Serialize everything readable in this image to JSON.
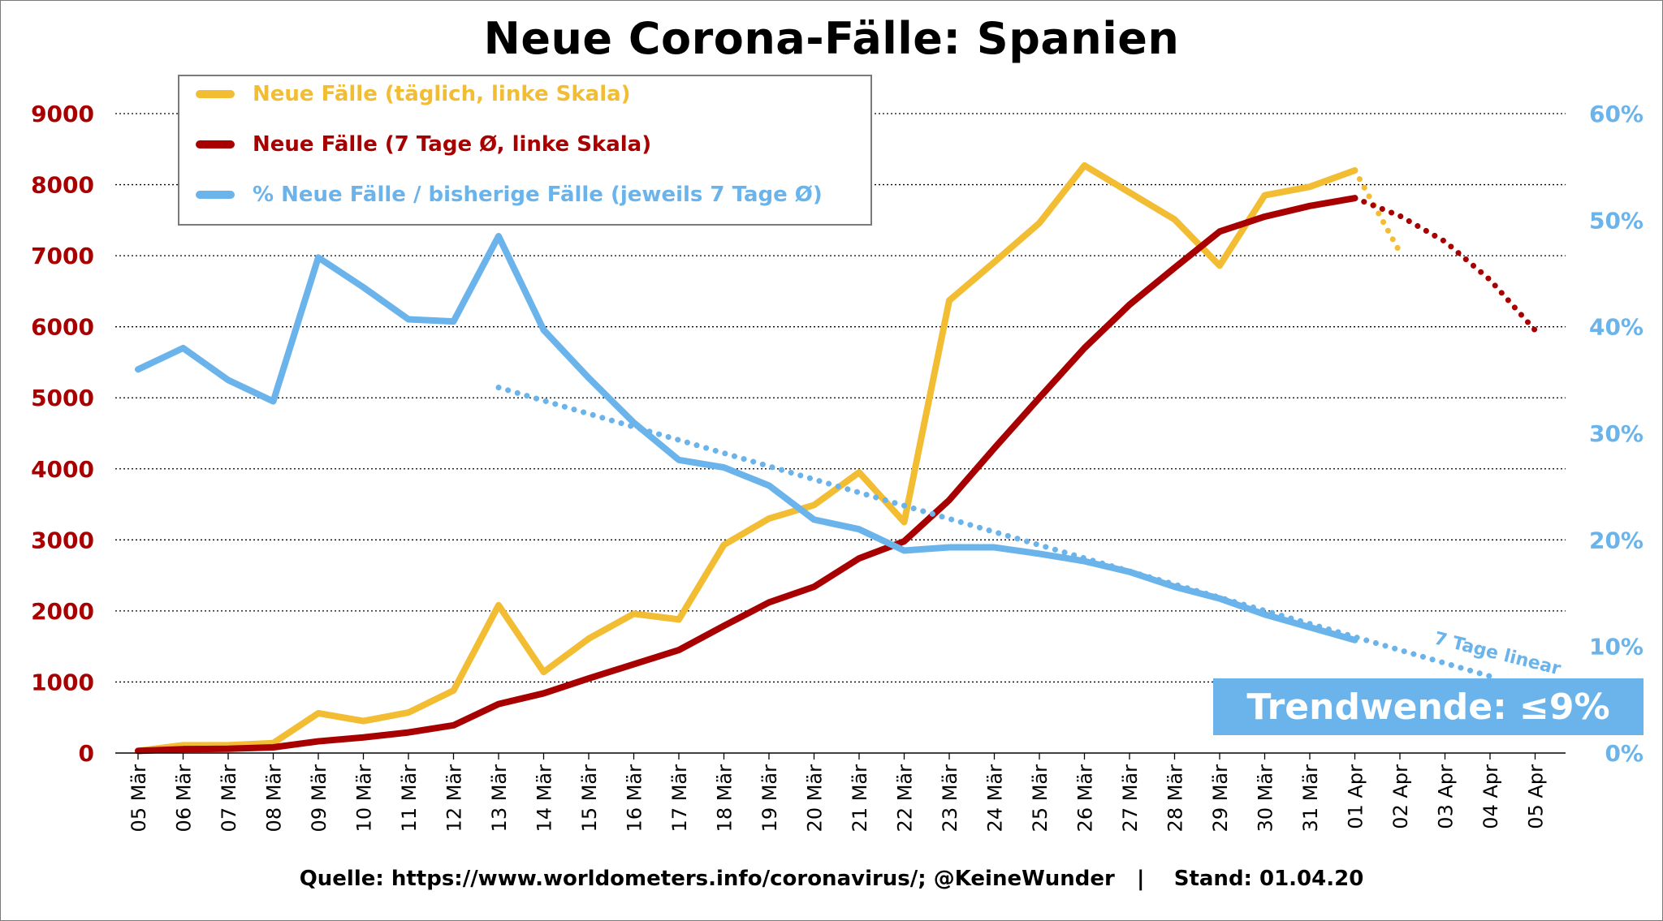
{
  "title": "Neue Corona-Fälle: Spanien",
  "footer": "Quelle: https://www.worldometers.info/coronavirus/; @KeineWunder   |    Stand: 01.04.20",
  "trend_box": "Trendwende: ≤9%",
  "trend_label": "7 Tage linear",
  "colors": {
    "daily": "#f2bd33",
    "avg": "#a80000",
    "pct": "#6ab4eb",
    "left_axis": "#a80000",
    "right_axis": "#6ab4eb"
  },
  "legend": [
    {
      "label": "Neue Fälle (täglich, linke Skala)",
      "color": "#f2bd33"
    },
    {
      "label": "Neue Fälle (7 Tage Ø, linke Skala)",
      "color": "#a80000"
    },
    {
      "label": "% Neue Fälle / bisherige Fälle (jeweils 7 Tage Ø)",
      "color": "#6ab4eb"
    }
  ],
  "chart_data": {
    "type": "line",
    "categories": [
      "05 Mär",
      "06 Mär",
      "07 Mär",
      "08 Mär",
      "09 Mär",
      "10 Mär",
      "11 Mär",
      "12 Mär",
      "13 Mär",
      "14 Mär",
      "15 Mär",
      "16 Mär",
      "17 Mär",
      "18 Mär",
      "19 Mär",
      "20 Mär",
      "21 Mär",
      "22 Mär",
      "23 Mär",
      "24 Mär",
      "25 Mär",
      "26 Mär",
      "27 Mär",
      "28 Mär",
      "29 Mär",
      "30 Mär",
      "31 Mär",
      "01 Apr",
      "02 Apr",
      "03 Apr",
      "04 Apr",
      "05 Apr"
    ],
    "y_left": {
      "min": 0,
      "max": 9000,
      "ticks": [
        0,
        1000,
        2000,
        3000,
        4000,
        5000,
        6000,
        7000,
        8000,
        9000
      ],
      "tick_labels": [
        "0",
        "1000",
        "2000",
        "3000",
        "4000",
        "5000",
        "6000",
        "7000",
        "8000",
        "9000"
      ]
    },
    "y_right": {
      "min": 0,
      "max": 60,
      "ticks": [
        0,
        10,
        20,
        30,
        40,
        50,
        60
      ],
      "tick_labels": [
        "0%",
        "10%",
        "20%",
        "30%",
        "40%",
        "50%",
        "60%"
      ]
    },
    "grid": "horizontal dotted",
    "series": [
      {
        "name": "Neue Fälle (täglich, linke Skala)",
        "axis": "left",
        "style": "solid",
        "values": [
          30,
          110,
          110,
          140,
          560,
          450,
          570,
          880,
          2080,
          1140,
          1610,
          1960,
          1880,
          2930,
          3300,
          3490,
          3950,
          3250,
          6370,
          6910,
          7460,
          8270,
          7890,
          7510,
          6860,
          7850,
          7970,
          8200,
          null,
          null,
          null,
          null
        ]
      },
      {
        "name": "Neue Fälle (täglich, linke Skala)",
        "axis": "left",
        "style": "dotted",
        "values": [
          null,
          null,
          null,
          null,
          null,
          null,
          null,
          null,
          null,
          null,
          null,
          null,
          null,
          null,
          null,
          null,
          null,
          null,
          null,
          null,
          null,
          null,
          null,
          null,
          null,
          null,
          null,
          8200,
          7050,
          null,
          null,
          null
        ]
      },
      {
        "name": "Neue Fälle (7 Tage Ø, linke Skala)",
        "axis": "left",
        "style": "solid",
        "values": [
          30,
          55,
          60,
          80,
          165,
          220,
          290,
          390,
          690,
          840,
          1050,
          1250,
          1450,
          1790,
          2120,
          2340,
          2740,
          2980,
          3560,
          4290,
          5000,
          5700,
          6310,
          6830,
          7340,
          7550,
          7700,
          7810,
          null,
          null,
          null,
          null
        ]
      },
      {
        "name": "Neue Fälle (7 Tage Ø, linke Skala)",
        "axis": "left",
        "style": "dotted",
        "values": [
          null,
          null,
          null,
          null,
          null,
          null,
          null,
          null,
          null,
          null,
          null,
          null,
          null,
          null,
          null,
          null,
          null,
          null,
          null,
          null,
          null,
          null,
          null,
          null,
          null,
          null,
          null,
          7810,
          7560,
          7200,
          6660,
          5950
        ]
      },
      {
        "name": "% Neue Fälle / bisherige Fälle (jeweils 7 Tage Ø)",
        "axis": "right",
        "style": "solid",
        "values": [
          36,
          38,
          35,
          33,
          46.5,
          43.7,
          40.7,
          40.5,
          48.5,
          39.7,
          35.2,
          31,
          27.5,
          26.8,
          25.1,
          21.9,
          21,
          19,
          19.3,
          19.3,
          18.7,
          18,
          17,
          15.6,
          14.5,
          13,
          11.8,
          10.6,
          null,
          null,
          null,
          null
        ]
      },
      {
        "name": "7 Tage linear",
        "axis": "right",
        "style": "dotted",
        "values": [
          null,
          null,
          null,
          null,
          null,
          null,
          null,
          null,
          34.3,
          null,
          null,
          null,
          null,
          null,
          null,
          null,
          null,
          null,
          null,
          null,
          null,
          null,
          null,
          null,
          null,
          null,
          null,
          null,
          null,
          null,
          7.2,
          null
        ]
      }
    ]
  }
}
